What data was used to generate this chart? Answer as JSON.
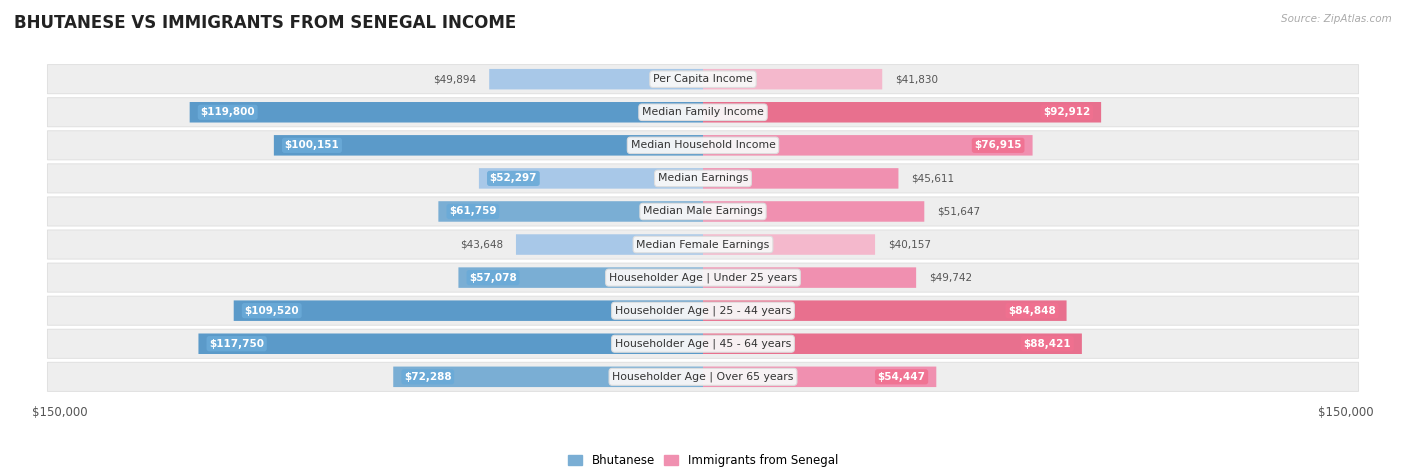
{
  "title": "BHUTANESE VS IMMIGRANTS FROM SENEGAL INCOME",
  "source": "Source: ZipAtlas.com",
  "categories": [
    "Per Capita Income",
    "Median Family Income",
    "Median Household Income",
    "Median Earnings",
    "Median Male Earnings",
    "Median Female Earnings",
    "Householder Age | Under 25 years",
    "Householder Age | 25 - 44 years",
    "Householder Age | 45 - 64 years",
    "Householder Age | Over 65 years"
  ],
  "bhutanese": [
    49894,
    119800,
    100151,
    52297,
    61759,
    43648,
    57078,
    109520,
    117750,
    72288
  ],
  "senegal": [
    41830,
    92912,
    76915,
    45611,
    51647,
    40157,
    49742,
    84848,
    88421,
    54447
  ],
  "bhutanese_labels": [
    "$49,894",
    "$119,800",
    "$100,151",
    "$52,297",
    "$61,759",
    "$43,648",
    "$57,078",
    "$109,520",
    "$117,750",
    "$72,288"
  ],
  "senegal_labels": [
    "$41,830",
    "$92,912",
    "$76,915",
    "$45,611",
    "$51,647",
    "$40,157",
    "$49,742",
    "$84,848",
    "$88,421",
    "$54,447"
  ],
  "blue_light": "#a8c8e8",
  "blue_mid": "#7aaed4",
  "blue_strong": "#5b9ac9",
  "pink_light": "#f4b8cc",
  "pink_mid": "#f090b0",
  "pink_strong": "#e8708e",
  "blue_badge": "#6aaad8",
  "pink_badge": "#f07090",
  "max_value": 150000,
  "row_bg": "#eeeeee",
  "row_border": "#dddddd",
  "bg_color": "#ffffff",
  "cat_box_bg": "#f8f8f8",
  "cat_box_edge": "#dddddd",
  "threshold_inside": 52000
}
